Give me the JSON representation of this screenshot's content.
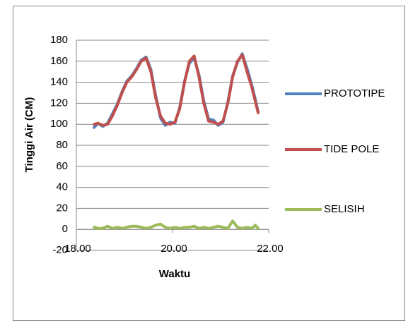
{
  "chart_data": {
    "type": "line",
    "x_label": "Waktu",
    "y_label": "Tinggi Air (CM)",
    "x": [
      18.37,
      18.45,
      18.55,
      18.65,
      18.75,
      18.85,
      18.95,
      19.05,
      19.15,
      19.25,
      19.35,
      19.45,
      19.55,
      19.65,
      19.75,
      19.85,
      19.95,
      20.05,
      20.15,
      20.25,
      20.35,
      20.45,
      20.55,
      20.65,
      20.75,
      20.85,
      20.95,
      21.05,
      21.15,
      21.25,
      21.35,
      21.45,
      21.55,
      21.65,
      21.72,
      21.78
    ],
    "series": [
      {
        "name": "PROTOTIPE",
        "color": "#4f81bd",
        "values": [
          97,
          101,
          98,
          101,
          110,
          119,
          131,
          141,
          146,
          153,
          161,
          164,
          152,
          127,
          106,
          99,
          102,
          101,
          116,
          141,
          158,
          163,
          147,
          122,
          105,
          104,
          99,
          102,
          121,
          146,
          159,
          167,
          153,
          137,
          124,
          112
        ]
      },
      {
        "name": "TIDE POLE",
        "color": "#c0504d",
        "values": [
          100,
          101,
          99,
          100,
          108,
          118,
          130,
          140,
          145,
          152,
          160,
          163,
          150,
          125,
          108,
          101,
          100,
          102,
          115,
          140,
          160,
          165,
          145,
          120,
          103,
          102,
          100,
          103,
          120,
          145,
          160,
          166,
          150,
          135,
          122,
          111
        ]
      },
      {
        "name": "SELISIH",
        "color": "#9bbb59",
        "values": [
          2,
          1,
          1,
          3,
          1,
          2,
          1,
          2,
          3,
          3,
          2,
          1,
          2,
          4,
          5,
          2,
          1,
          2,
          1,
          2,
          2,
          3,
          1,
          2,
          1,
          2,
          3,
          2,
          1,
          8,
          2,
          1,
          2,
          1,
          4,
          1
        ]
      }
    ],
    "xlim": [
      18,
      22
    ],
    "xticks": [
      {
        "value": 18,
        "label": "18.00"
      },
      {
        "value": 20,
        "label": "20.00"
      },
      {
        "value": 22,
        "label": "22.00"
      }
    ],
    "ylim": [
      -20,
      180
    ],
    "yticks": [
      -20,
      0,
      20,
      40,
      60,
      80,
      100,
      120,
      140,
      160,
      180
    ],
    "grid": true,
    "legend": "right"
  }
}
